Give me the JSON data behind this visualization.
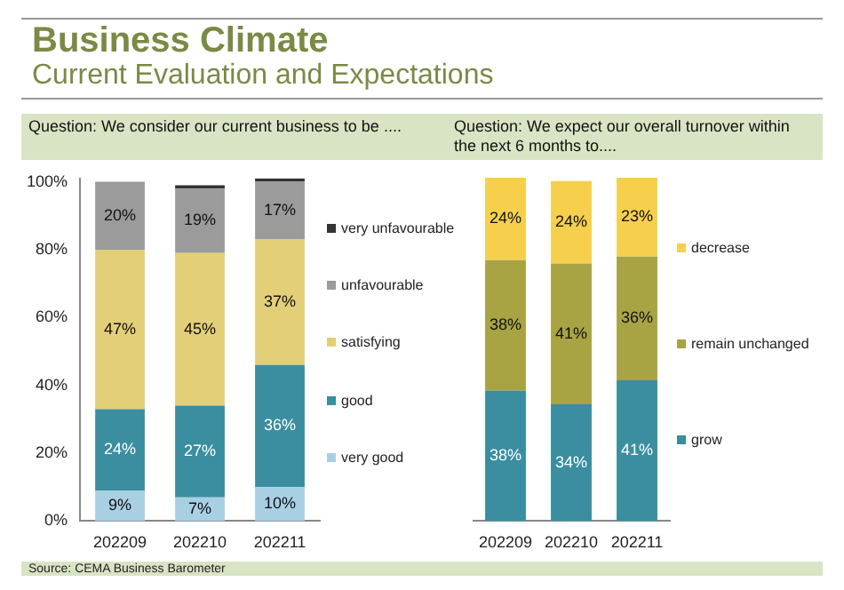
{
  "chart_data": [
    {
      "type": "bar",
      "title": "Business Climate",
      "subtitle": "Current Evaluation and Expectations",
      "annotations": [
        "Question: We consider our current business to be ....",
        "Source: CEMA Business Barometer"
      ],
      "categories": [
        "202209",
        "202210",
        "202211"
      ],
      "stacked": true,
      "legend": "right",
      "ylim": [
        0,
        101
      ],
      "yticks": [
        {
          "value": 0,
          "label": "0%"
        },
        {
          "value": 20,
          "label": "20%"
        },
        {
          "value": 40,
          "label": "40%"
        },
        {
          "value": 60,
          "label": "60%"
        },
        {
          "value": 80,
          "label": "80%"
        },
        {
          "value": 100,
          "label": "100%"
        }
      ],
      "series": [
        {
          "name": "very good",
          "color": "#a9cfe3",
          "values": [
            9,
            7,
            10
          ],
          "value_labels": [
            "9%",
            "7%",
            "10%"
          ]
        },
        {
          "name": "good",
          "color": "#3a8ea0",
          "values": [
            24,
            27,
            36
          ],
          "value_labels": [
            "24%",
            "27%",
            "36%"
          ]
        },
        {
          "name": "satisfying",
          "color": "#e3cf78",
          "values": [
            47,
            45,
            37
          ],
          "value_labels": [
            "47%",
            "45%",
            "37%"
          ]
        },
        {
          "name": "unfavourable",
          "color": "#9b9b9b",
          "values": [
            20,
            19,
            17
          ],
          "value_labels": [
            "20%",
            "19%",
            "17%"
          ]
        },
        {
          "name": "very unfavourable",
          "color": "#333333",
          "values": [
            0,
            1,
            1
          ],
          "value_labels": [
            null,
            null,
            null
          ]
        }
      ]
    },
    {
      "type": "bar",
      "annotations": [
        "Question: We expect our overall turnover within the next 6 months to...."
      ],
      "categories": [
        "202209",
        "202210",
        "202211"
      ],
      "stacked": true,
      "legend": "right",
      "ylim": [
        0,
        100
      ],
      "tick_labels": "x",
      "series": [
        {
          "name": "grow",
          "color": "#3a8ea0",
          "values": [
            38,
            34,
            41
          ],
          "value_labels": [
            "38%",
            "34%",
            "41%"
          ]
        },
        {
          "name": "remain unchanged",
          "color": "#a8a444",
          "values": [
            38,
            41,
            36
          ],
          "value_labels": [
            "38%",
            "41%",
            "36%"
          ]
        },
        {
          "name": "decrease",
          "color": "#f6d04d",
          "values": [
            24,
            24,
            23
          ],
          "value_labels": [
            "24%",
            "24%",
            "23%"
          ]
        }
      ]
    }
  ]
}
